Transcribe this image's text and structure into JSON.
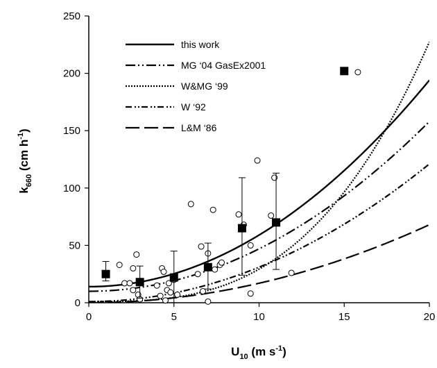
{
  "chart_data": {
    "type": "scatter",
    "xlabel": {
      "main": "U",
      "sub": "10",
      "unit": "(m s",
      "sup": "-1",
      "close": ")"
    },
    "ylabel": {
      "main": "k",
      "sub": "660",
      "unit": "(cm h",
      "sup": "-1",
      "close": ")"
    },
    "xlim": [
      0,
      20
    ],
    "ylim": [
      0,
      250
    ],
    "x_ticks": [
      0,
      5,
      10,
      15,
      20
    ],
    "y_ticks": [
      0,
      50,
      100,
      150,
      200,
      250
    ],
    "grid": false,
    "legend_position": "top-left",
    "series": [
      {
        "name": "this work",
        "style": "solid",
        "kind": "curve",
        "formula": "0.45*u^2 + 14"
      },
      {
        "name": "MG ‘04 GasEx2001",
        "style": "dash-dot-dot",
        "kind": "curve",
        "formula": "0.37*u^2 + 10"
      },
      {
        "name": "W&MG ‘99",
        "style": "dotted",
        "kind": "curve",
        "formula": "0.0283*u^3 + 1"
      },
      {
        "name": "W ‘92",
        "style": "dash-dot-dot-long",
        "kind": "curve",
        "formula": "0.30*u^2 + 1"
      },
      {
        "name": "L&M ‘86",
        "style": "long-dash",
        "kind": "curve",
        "formula": "0.17*u^2 + 0"
      }
    ],
    "binned_means": {
      "marker": "filled-square",
      "points": [
        {
          "x": 1,
          "y": 25,
          "err_low": 19,
          "err_high": 36
        },
        {
          "x": 3,
          "y": 18,
          "err_low": 4,
          "err_high": 32
        },
        {
          "x": 5,
          "y": 22,
          "err_low": 0,
          "err_high": 45
        },
        {
          "x": 7,
          "y": 31,
          "err_low": 12,
          "err_high": 52
        },
        {
          "x": 9,
          "y": 65,
          "err_low": 24,
          "err_high": 109
        },
        {
          "x": 11,
          "y": 70,
          "err_low": 29,
          "err_high": 113
        },
        {
          "x": 15,
          "y": 202,
          "err_low": 202,
          "err_high": 202
        }
      ]
    },
    "observations": {
      "marker": "open-circle",
      "points": [
        [
          1.8,
          33
        ],
        [
          2.1,
          17
        ],
        [
          2.4,
          17
        ],
        [
          2.6,
          30
        ],
        [
          2.6,
          11
        ],
        [
          2.8,
          42
        ],
        [
          2.9,
          7
        ],
        [
          3.0,
          3
        ],
        [
          4.0,
          15
        ],
        [
          4.2,
          6
        ],
        [
          4.3,
          30
        ],
        [
          4.4,
          27
        ],
        [
          4.5,
          2
        ],
        [
          4.6,
          11
        ],
        [
          4.7,
          17
        ],
        [
          4.8,
          9
        ],
        [
          5.0,
          20
        ],
        [
          5.2,
          7
        ],
        [
          6.0,
          86
        ],
        [
          6.4,
          25
        ],
        [
          6.6,
          49
        ],
        [
          6.7,
          10
        ],
        [
          7.0,
          43
        ],
        [
          7.0,
          1
        ],
        [
          7.3,
          81
        ],
        [
          7.4,
          29
        ],
        [
          7.7,
          33
        ],
        [
          7.8,
          35
        ],
        [
          8.8,
          77
        ],
        [
          9.1,
          68
        ],
        [
          9.5,
          50
        ],
        [
          9.5,
          8
        ],
        [
          9.9,
          124
        ],
        [
          10.7,
          76
        ],
        [
          10.9,
          109
        ],
        [
          11.9,
          26
        ],
        [
          15.8,
          201
        ]
      ]
    }
  }
}
